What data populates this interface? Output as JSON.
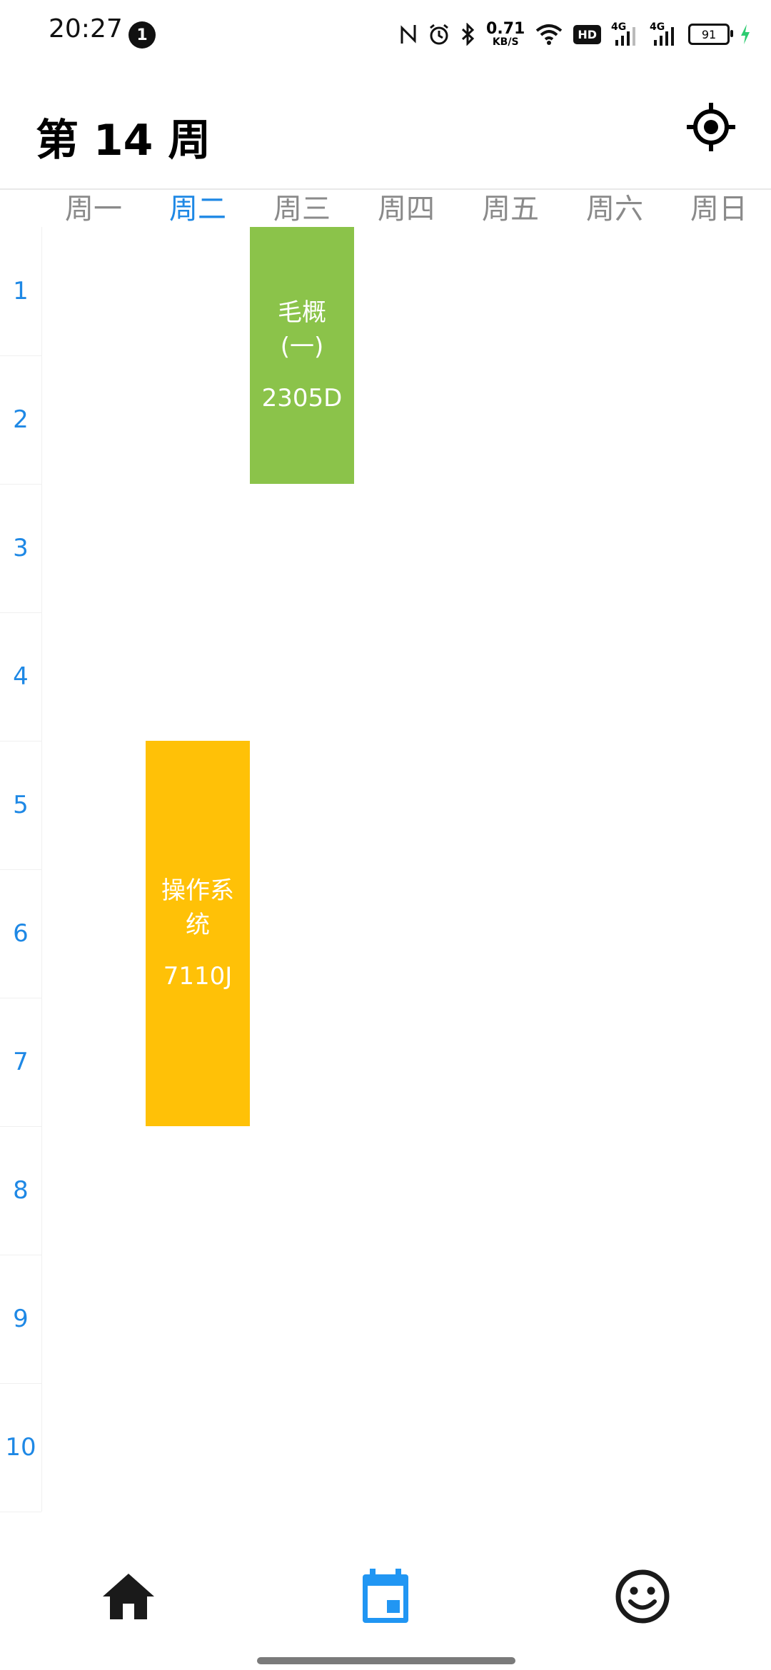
{
  "status_bar": {
    "time": "20:27",
    "notification_count": "1",
    "speed_value": "0.71",
    "speed_unit": "KB/S",
    "hd_label": "HD",
    "net1": "4G",
    "net2": "4G",
    "battery": "91"
  },
  "header": {
    "title": "第 14 周",
    "locate_icon": "crosshair-icon"
  },
  "weekdays": [
    "周一",
    "周二",
    "周三",
    "周四",
    "周五",
    "周六",
    "周日"
  ],
  "active_weekday": "周二",
  "periods": [
    "1",
    "2",
    "3",
    "4",
    "5",
    "6",
    "7",
    "8",
    "9",
    "10"
  ],
  "courses": [
    {
      "name_line1": "毛概",
      "name_line2": "(一)",
      "room": "2305D",
      "day": "周三",
      "start_period": 1,
      "end_period": 2,
      "color": "#8bc34a"
    },
    {
      "name_line1": "操作系",
      "name_line2": "统",
      "room": "7110J",
      "day": "周二",
      "start_period": 5,
      "end_period": 7,
      "color": "#ffc107"
    }
  ],
  "bottom_nav": {
    "items": [
      {
        "icon": "home-icon",
        "active": false
      },
      {
        "icon": "calendar-icon",
        "active": true
      },
      {
        "icon": "smiley-icon",
        "active": false
      }
    ],
    "active_color": "#2196f3",
    "inactive_color": "#1a1a1a"
  }
}
